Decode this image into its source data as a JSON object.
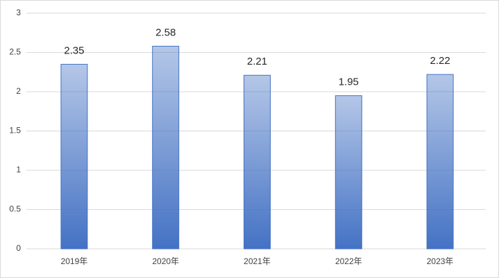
{
  "chart_data": {
    "type": "bar",
    "categories": [
      "2019年",
      "2020年",
      "2021年",
      "2022年",
      "2023年"
    ],
    "values": [
      2.35,
      2.58,
      2.21,
      1.95,
      2.22
    ],
    "color": "#4472c4",
    "ylim": [
      0,
      3
    ],
    "yticks": [
      0,
      0.5,
      1,
      1.5,
      2,
      2.5,
      3
    ],
    "grid": true
  }
}
